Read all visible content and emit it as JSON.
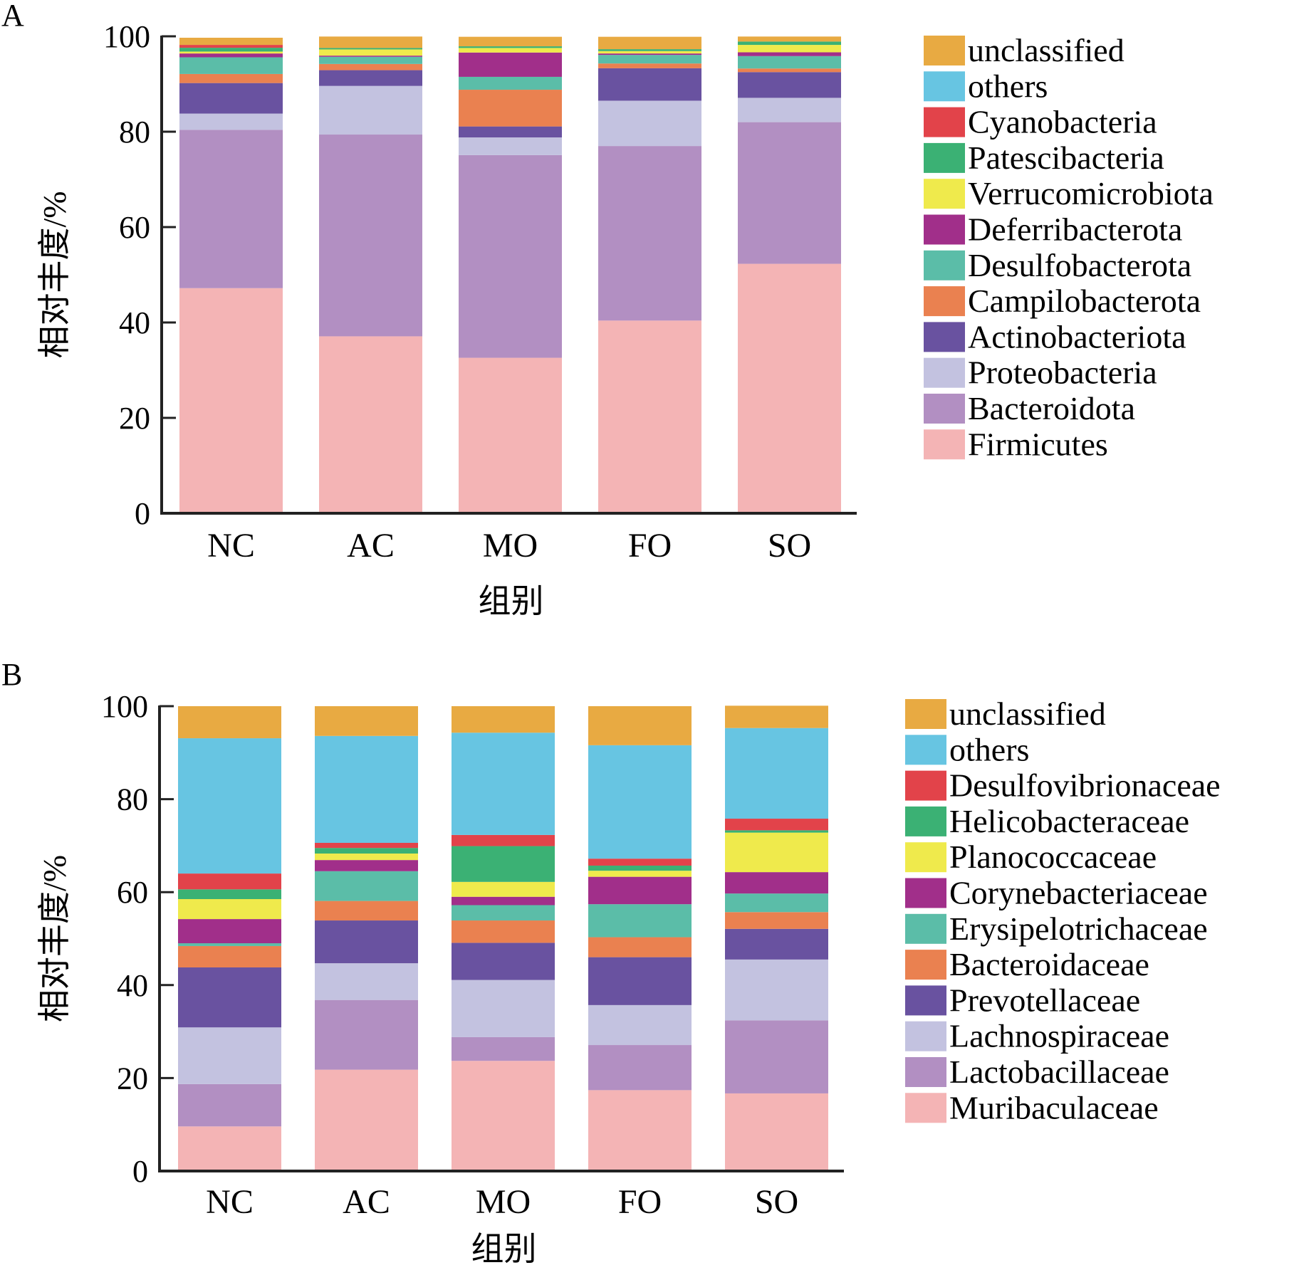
{
  "chart_data": [
    {
      "panel": "A",
      "type": "bar",
      "stacked": true,
      "title": "",
      "xlabel": "组别",
      "ylabel": "相对丰度/%",
      "ylim": [
        0,
        100
      ],
      "yticks": [
        0,
        20,
        40,
        60,
        80,
        100
      ],
      "categories": [
        "NC",
        "AC",
        "MO",
        "FO",
        "SO"
      ],
      "legend_position": "right",
      "series": [
        {
          "name": "Firmicutes",
          "color": "#F4B4B5",
          "values": [
            47.2,
            37.1,
            32.6,
            40.4,
            52.3
          ]
        },
        {
          "name": "Bacteroidota",
          "color": "#B28FC2",
          "values": [
            33.2,
            42.3,
            42.5,
            36.6,
            29.7
          ]
        },
        {
          "name": "Proteobacteria",
          "color": "#C3C2E0",
          "values": [
            3.4,
            10.2,
            3.7,
            9.5,
            5.1
          ]
        },
        {
          "name": "Actinobacteriota",
          "color": "#6952A0",
          "values": [
            6.4,
            3.3,
            2.3,
            6.8,
            5.4
          ]
        },
        {
          "name": "Campilobacterota",
          "color": "#EA8150",
          "values": [
            1.9,
            1.3,
            7.7,
            1.0,
            0.75
          ]
        },
        {
          "name": "Desulfobacterota",
          "color": "#5BBDA8",
          "values": [
            3.5,
            1.5,
            2.7,
            1.8,
            2.6
          ]
        },
        {
          "name": "Deferribacterota",
          "color": "#A12F8A",
          "values": [
            0.8,
            0.25,
            5.1,
            0.3,
            0.8
          ]
        },
        {
          "name": "Verrucomicrobiota",
          "color": "#EFEA4C",
          "values": [
            0.4,
            1.3,
            0.95,
            0.5,
            1.55
          ]
        },
        {
          "name": "Patescibacteria",
          "color": "#3BB174",
          "values": [
            0.8,
            0.3,
            0.35,
            0.4,
            0.7
          ]
        },
        {
          "name": "Cyanobacteria",
          "color": "#E2434A",
          "values": [
            0.6,
            0.0,
            0.0,
            0.0,
            0.0
          ]
        },
        {
          "name": "others",
          "color": "#67C5E2",
          "values": [
            0.0,
            0.0,
            0.0,
            0.0,
            0.0
          ]
        },
        {
          "name": "unclassified",
          "color": "#E8AA42",
          "values": [
            1.5,
            2.4,
            2.0,
            2.6,
            1.05
          ]
        }
      ]
    },
    {
      "panel": "B",
      "type": "bar",
      "stacked": true,
      "title": "",
      "xlabel": "组别",
      "ylabel": "相对丰度/%",
      "ylim": [
        0,
        100
      ],
      "yticks": [
        0,
        20,
        40,
        60,
        80,
        100
      ],
      "categories": [
        "NC",
        "AC",
        "MO",
        "FO",
        "SO"
      ],
      "legend_position": "right",
      "series": [
        {
          "name": "Muribaculaceae",
          "color": "#F4B4B5",
          "values": [
            9.6,
            21.8,
            23.7,
            17.4,
            16.7
          ]
        },
        {
          "name": "Lactobacillaceae",
          "color": "#B28FC2",
          "values": [
            9.1,
            15.0,
            5.1,
            9.7,
            15.7
          ]
        },
        {
          "name": "Lachnospiraceae",
          "color": "#C3C2E0",
          "values": [
            12.2,
            7.9,
            12.3,
            8.6,
            13.1
          ]
        },
        {
          "name": "Prevotellaceae",
          "color": "#6952A0",
          "values": [
            12.9,
            9.2,
            8.0,
            10.3,
            6.6
          ]
        },
        {
          "name": "Bacteroidaceae",
          "color": "#EA8150",
          "values": [
            4.6,
            4.2,
            4.8,
            4.3,
            3.6
          ]
        },
        {
          "name": "Erysipelotrichaceae",
          "color": "#5BBDA8",
          "values": [
            0.6,
            6.4,
            3.3,
            7.1,
            4.0
          ]
        },
        {
          "name": "Corynebacteriaceae",
          "color": "#A12F8A",
          "values": [
            5.2,
            2.4,
            1.8,
            5.9,
            4.6
          ]
        },
        {
          "name": "Planococcaceae",
          "color": "#EFEA4C",
          "values": [
            4.3,
            1.4,
            3.2,
            1.3,
            8.5
          ]
        },
        {
          "name": "Helicobacteraceae",
          "color": "#3BB174",
          "values": [
            2.1,
            1.2,
            7.7,
            1.1,
            0.5
          ]
        },
        {
          "name": "Desulfovibrionaceae",
          "color": "#E2434A",
          "values": [
            3.4,
            1.1,
            2.4,
            1.5,
            2.5
          ]
        },
        {
          "name": "others",
          "color": "#67C5E2",
          "values": [
            29.1,
            23.0,
            22.0,
            24.4,
            19.5
          ]
        },
        {
          "name": "unclassified",
          "color": "#E8AA42",
          "values": [
            6.9,
            6.4,
            5.7,
            8.4,
            4.8
          ]
        }
      ]
    }
  ]
}
